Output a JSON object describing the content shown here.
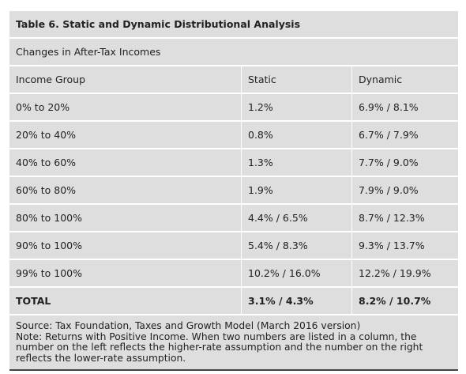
{
  "title": "Table 6. Static and Dynamic Distributional Analysis",
  "subtitle": "Changes in After-Tax Incomes",
  "table": {
    "header": [
      "Income Group",
      "Static",
      "Dynamic"
    ],
    "rows": [
      [
        "0% to 20%",
        "1.2%",
        "6.9% / 8.1%"
      ],
      [
        "20% to 40%",
        "0.8%",
        "6.7% / 7.9%"
      ],
      [
        "40% to 60%",
        "1.3%",
        "7.7% / 9.0%"
      ],
      [
        "60% to 80%",
        "1.9%",
        "7.9% / 9.0%"
      ],
      [
        "80% to 100%",
        "4.4% / 6.5%",
        "8.7% / 12.3%"
      ],
      [
        "90% to 100%",
        "5.4% / 8.3%",
        "9.3% / 13.7%"
      ],
      [
        "99% to 100%",
        "10.2% / 16.0%",
        "12.2% / 19.9%"
      ]
    ],
    "total": [
      "TOTAL",
      "3.1% / 4.3%",
      "8.2% / 10.7%"
    ]
  },
  "source": "Source: Tax Foundation, Taxes and Growth Model (March 2016 version)",
  "note": "Note: Returns with Positive Income. When two numbers are listed in a column, the number on the left reflects the higher-rate assumption and the number on the right reflects the lower-rate assumption."
}
